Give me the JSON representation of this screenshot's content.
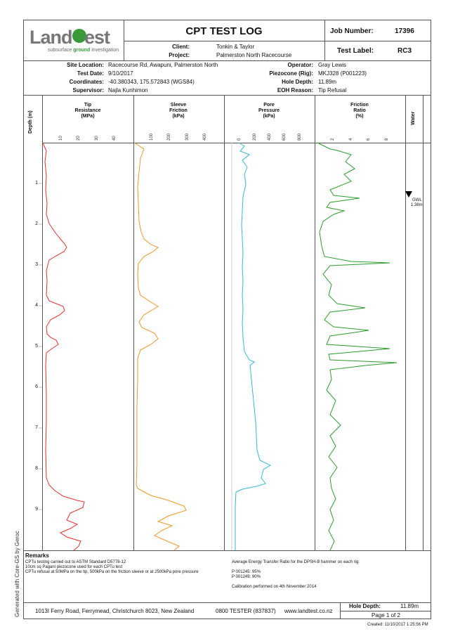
{
  "header": {
    "title": "CPT TEST LOG",
    "job_label": "Job Number:",
    "job_value": "17396",
    "test_label_label": "Test Label:",
    "test_label_value": "RC3",
    "client_label": "Client:",
    "client_value": "Tonkin & Taylor",
    "project_label": "Project:",
    "project_value": "Palmerston North Racecourse"
  },
  "logo": {
    "word_land": "Land",
    "word_test": "est",
    "tagline_a": "subsurface ",
    "tagline_b": "ground",
    "tagline_c": " investigation"
  },
  "site": {
    "location_label": "Site Location:",
    "location": "Racecourse Rd, Awapuni, Palmerston North",
    "date_label": "Test Date:",
    "date": "9/10/2017",
    "coords_label": "Coordinates:",
    "coords": "-40.380343, 175.572843 (WGS84)",
    "supervisor_label": "Supervisor:",
    "supervisor": "Najla Kunhimon",
    "operator_label": "Operator:",
    "operator": "Gray Lewis",
    "piezocone_label": "Piezocone (Rig):",
    "piezocone": "MKJ328 (P001223)",
    "hole_depth_label": "Hole Depth:",
    "hole_depth": "11.89m",
    "eoh_label": "EOH Reason:",
    "eoh": "Tip Refusal"
  },
  "columns": {
    "depth": "Depth (m)",
    "tip_l1": "Tip",
    "tip_l2": "Resistance",
    "tip_l3": "(MPa)",
    "sleeve_l1": "Sleeve",
    "sleeve_l2": "Friction",
    "sleeve_l3": "(kPa)",
    "pore_l1": "Pore",
    "pore_l2": "Pressure",
    "pore_l3": "(kPa)",
    "fr_l1": "Friction",
    "fr_l2": "Ratio",
    "fr_l3": "(%)",
    "water": "Water"
  },
  "ticks": {
    "tip": [
      "10",
      "20",
      "30",
      "40"
    ],
    "sleeve": [
      "100",
      "200",
      "300",
      "400"
    ],
    "pore": [
      "0",
      "200",
      "400",
      "600",
      "800"
    ],
    "fr": [
      "2",
      "4",
      "6",
      "8"
    ]
  },
  "depth_labels": [
    "1",
    "2",
    "3",
    "4",
    "5",
    "6",
    "7",
    "8",
    "9"
  ],
  "gwl": {
    "label": "GWL",
    "value": "1.36m",
    "depth": 1.36
  },
  "colors": {
    "tip": "#e53030",
    "sleeve": "#f0962a",
    "pore": "#36b8d0",
    "fr": "#2e9a2e"
  },
  "remarks": {
    "title": "Remarks",
    "l1": "CPTu testing carried out to ASTM Standard D5778-12",
    "l2": "10cm sq Pagani piezocone used for each CPTu test",
    "l3": "CPTu refusal at 50MPa on the tip, 500kPa on the friction sleeve or at 2500kPa pore pressure",
    "r1": "Average Energy Transfer Ratio for the DPSH-B hammer on each rig:",
    "r2": "P 001245: 95%",
    "r3": "P 001249: 90%",
    "r4": "Calibration performed on 4th November 2014"
  },
  "footer": {
    "address": "1013I Ferry Road, Ferrymead, Christchurch 8023, New Zealand",
    "phone": "0800 TESTER (837837)",
    "web": "www.landtest.co.nz",
    "hole_depth_label": "Hole Depth:",
    "hole_depth": "11.89m",
    "page": "Page 1 of 2",
    "created": "Created: 11/10/2017 1:25:56 PM",
    "generated": "Generated with Core-GS by Geroc"
  }
}
